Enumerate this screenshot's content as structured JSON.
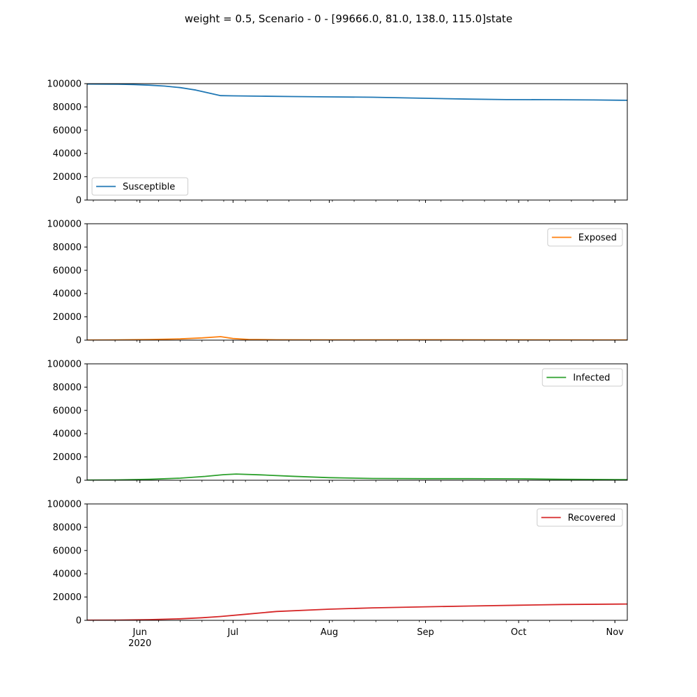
{
  "figure": {
    "suptitle": "weight = 0.5, Scenario - 0 - [99666.0, 81.0, 138.0, 115.0]state"
  },
  "chart_data": [
    {
      "type": "line",
      "series": [
        {
          "name": "Susceptible",
          "color": "#1f77b4",
          "x": [
            "2020-05-15",
            "2020-05-20",
            "2020-05-25",
            "2020-05-30",
            "2020-06-04",
            "2020-06-09",
            "2020-06-14",
            "2020-06-19",
            "2020-06-24",
            "2020-06-27",
            "2020-07-01",
            "2020-07-10",
            "2020-07-20",
            "2020-08-01",
            "2020-08-15",
            "2020-09-01",
            "2020-09-15",
            "2020-09-27",
            "2020-10-10",
            "2020-10-25",
            "2020-11-05"
          ],
          "values": [
            99666,
            99600,
            99450,
            99150,
            98700,
            97900,
            96600,
            94500,
            91500,
            89700,
            89500,
            89200,
            88900,
            88600,
            88300,
            87400,
            86700,
            86300,
            86200,
            86000,
            85700
          ]
        }
      ],
      "ylim": [
        0,
        100000
      ],
      "yticks": [
        "0",
        "20000",
        "40000",
        "60000",
        "80000",
        "100000"
      ],
      "xlim": [
        "2020-05-15",
        "2020-11-05"
      ],
      "legend": "lower-left",
      "grid": false
    },
    {
      "type": "line",
      "series": [
        {
          "name": "Exposed",
          "color": "#ff7f0e",
          "x": [
            "2020-05-15",
            "2020-05-25",
            "2020-06-04",
            "2020-06-14",
            "2020-06-21",
            "2020-06-27",
            "2020-07-01",
            "2020-07-06",
            "2020-07-15",
            "2020-08-01",
            "2020-09-01",
            "2020-10-01",
            "2020-11-05"
          ],
          "values": [
            81,
            200,
            500,
            1100,
            1900,
            3000,
            1400,
            600,
            300,
            200,
            300,
            200,
            100
          ]
        }
      ],
      "ylim": [
        0,
        100000
      ],
      "yticks": [
        "0",
        "20000",
        "40000",
        "60000",
        "80000",
        "100000"
      ],
      "xlim": [
        "2020-05-15",
        "2020-11-05"
      ],
      "legend": "upper-right",
      "grid": false
    },
    {
      "type": "line",
      "series": [
        {
          "name": "Infected",
          "color": "#2ca02c",
          "x": [
            "2020-05-15",
            "2020-05-25",
            "2020-06-04",
            "2020-06-14",
            "2020-06-22",
            "2020-06-28",
            "2020-07-02",
            "2020-07-10",
            "2020-07-20",
            "2020-08-01",
            "2020-08-15",
            "2020-09-01",
            "2020-09-15",
            "2020-10-01",
            "2020-10-15",
            "2020-11-05"
          ],
          "values": [
            138,
            300,
            800,
            1800,
            3300,
            4800,
            5300,
            4600,
            3400,
            2200,
            1500,
            1300,
            1300,
            1200,
            800,
            500
          ]
        }
      ],
      "ylim": [
        0,
        100000
      ],
      "yticks": [
        "0",
        "20000",
        "40000",
        "60000",
        "80000",
        "100000"
      ],
      "xlim": [
        "2020-05-15",
        "2020-11-05"
      ],
      "legend": "upper-right",
      "grid": false
    },
    {
      "type": "line",
      "series": [
        {
          "name": "Recovered",
          "color": "#d62728",
          "x": [
            "2020-05-15",
            "2020-05-25",
            "2020-06-04",
            "2020-06-14",
            "2020-06-21",
            "2020-06-27",
            "2020-07-05",
            "2020-07-15",
            "2020-08-01",
            "2020-08-15",
            "2020-09-01",
            "2020-09-15",
            "2020-10-01",
            "2020-10-15",
            "2020-11-05"
          ],
          "values": [
            115,
            250,
            600,
            1300,
            2200,
            3300,
            5200,
            7600,
            9600,
            10700,
            11600,
            12300,
            13000,
            13600,
            14000
          ]
        }
      ],
      "ylim": [
        0,
        100000
      ],
      "yticks": [
        "0",
        "20000",
        "40000",
        "60000",
        "80000",
        "100000"
      ],
      "xlim": [
        "2020-05-15",
        "2020-11-05"
      ],
      "xticks": [
        {
          "date": "2020-06-01",
          "label": "Jun",
          "sublabel": "2020"
        },
        {
          "date": "2020-07-01",
          "label": "Jul",
          "sublabel": ""
        },
        {
          "date": "2020-08-01",
          "label": "Aug",
          "sublabel": ""
        },
        {
          "date": "2020-09-01",
          "label": "Sep",
          "sublabel": ""
        },
        {
          "date": "2020-10-01",
          "label": "Oct",
          "sublabel": ""
        },
        {
          "date": "2020-11-01",
          "label": "Nov",
          "sublabel": ""
        }
      ],
      "legend": "upper-right",
      "grid": false
    }
  ]
}
